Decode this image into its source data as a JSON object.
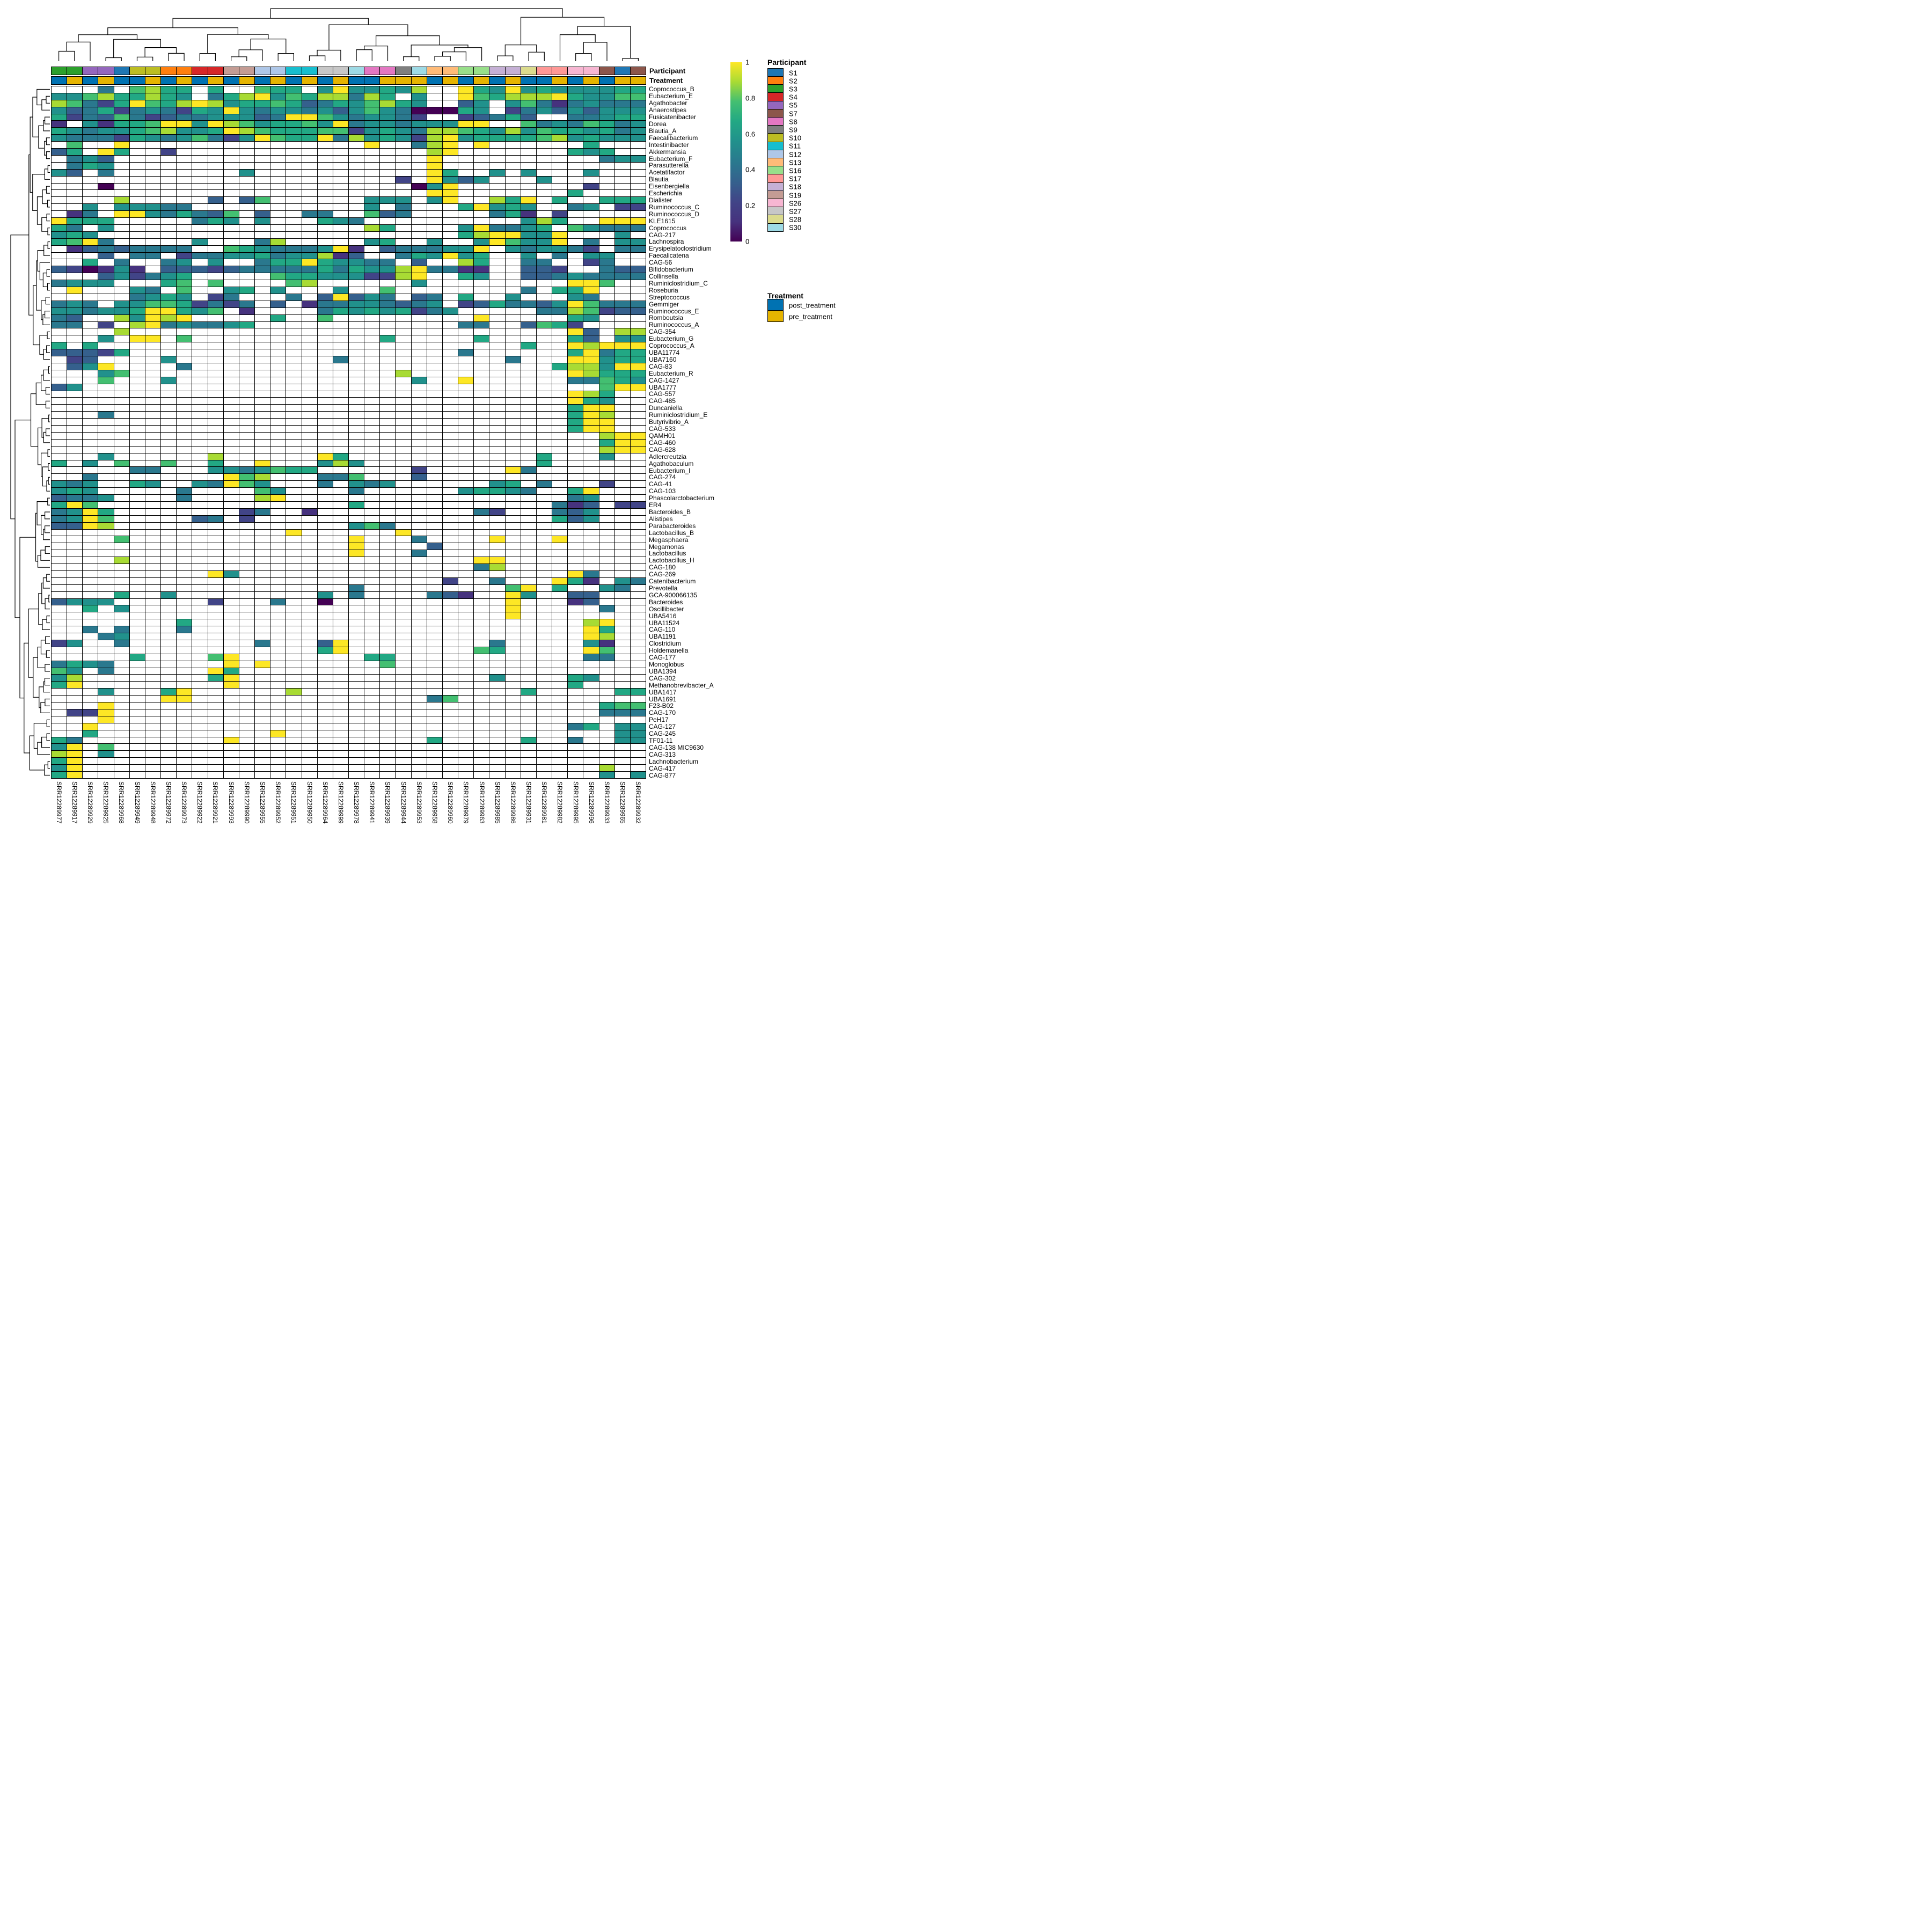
{
  "annotation_labels": {
    "participant": "Participant",
    "treatment": "Treatment"
  },
  "legend": {
    "scale": {
      "ticks": [
        "1",
        "0.8",
        "0.6",
        "0.4",
        "0.2",
        "0"
      ]
    },
    "participant": {
      "title": "Participant",
      "entries": [
        {
          "label": "S1",
          "color": "#1f77b4"
        },
        {
          "label": "S2",
          "color": "#ff7f0e"
        },
        {
          "label": "S3",
          "color": "#2ca02c"
        },
        {
          "label": "S4",
          "color": "#d62728"
        },
        {
          "label": "S5",
          "color": "#9467bd"
        },
        {
          "label": "S7",
          "color": "#8c564b"
        },
        {
          "label": "S8",
          "color": "#e377c2"
        },
        {
          "label": "S9",
          "color": "#7f7f7f"
        },
        {
          "label": "S10",
          "color": "#bcbd22"
        },
        {
          "label": "S11",
          "color": "#17becf"
        },
        {
          "label": "S12",
          "color": "#aec7e8"
        },
        {
          "label": "S13",
          "color": "#ffbb78"
        },
        {
          "label": "S16",
          "color": "#98df8a"
        },
        {
          "label": "S17",
          "color": "#ff9896"
        },
        {
          "label": "S18",
          "color": "#c5b0d5"
        },
        {
          "label": "S19",
          "color": "#c49c94"
        },
        {
          "label": "S26",
          "color": "#f7b6d2"
        },
        {
          "label": "S27",
          "color": "#c7c7c7"
        },
        {
          "label": "S28",
          "color": "#dbdb8d"
        },
        {
          "label": "S30",
          "color": "#9edae5"
        }
      ]
    },
    "treatment": {
      "title": "Treatment",
      "entries": [
        {
          "label": "post_treatment",
          "color": "#0072b2"
        },
        {
          "label": "pre_treatment",
          "color": "#e6b400"
        }
      ]
    }
  },
  "palette": {
    "participant": {
      "S1": "#1f77b4",
      "S2": "#ff7f0e",
      "S3": "#2ca02c",
      "S4": "#d62728",
      "S5": "#9467bd",
      "S7": "#8c564b",
      "S8": "#e377c2",
      "S9": "#7f7f7f",
      "S10": "#bcbd22",
      "S11": "#17becf",
      "S12": "#aec7e8",
      "S13": "#ffbb78",
      "S16": "#98df8a",
      "S17": "#ff9896",
      "S18": "#c5b0d5",
      "S19": "#c49c94",
      "S26": "#f7b6d2",
      "S27": "#c7c7c7",
      "S28": "#dbdb8d",
      "S30": "#9edae5"
    },
    "treatment": {
      "post_treatment": "#0072b2",
      "pre_treatment": "#e6b400"
    },
    "viridis10": [
      "#440154",
      "#46327e",
      "#414487",
      "#35608d",
      "#2a788e",
      "#21918c",
      "#22a884",
      "#43bf71",
      "#a8db34",
      "#fde725"
    ],
    "na_color": "#ffffff"
  },
  "chart_data": {
    "type": "heatmap",
    "colormap": "viridis",
    "value_range": [
      0,
      1
    ],
    "colorbar_ticks": [
      1,
      0.8,
      0.6,
      0.4,
      0.2,
      0
    ],
    "clustering": {
      "rows": true,
      "columns": true
    },
    "cell_encoding": "each character is one column; '.' = absent (white cell); digit d = abundance bucket with value approx (d+0.5)/10 on the 0-1 viridis scale",
    "columns": [
      {
        "id": "SRR12289977",
        "participant": "S3",
        "treatment": "post_treatment"
      },
      {
        "id": "SRR12289917",
        "participant": "S3",
        "treatment": "pre_treatment"
      },
      {
        "id": "SRR12289929",
        "participant": "S5",
        "treatment": "post_treatment"
      },
      {
        "id": "SRR12289925",
        "participant": "S5",
        "treatment": "pre_treatment"
      },
      {
        "id": "SRR12289968",
        "participant": "S1",
        "treatment": "post_treatment"
      },
      {
        "id": "SRR12289949",
        "participant": "S10",
        "treatment": "post_treatment"
      },
      {
        "id": "SRR12289948",
        "participant": "S10",
        "treatment": "pre_treatment"
      },
      {
        "id": "SRR12289972",
        "participant": "S2",
        "treatment": "post_treatment"
      },
      {
        "id": "SRR12289973",
        "participant": "S2",
        "treatment": "pre_treatment"
      },
      {
        "id": "SRR12289922",
        "participant": "S4",
        "treatment": "post_treatment"
      },
      {
        "id": "SRR12289921",
        "participant": "S4",
        "treatment": "pre_treatment"
      },
      {
        "id": "SRR12289993",
        "participant": "S19",
        "treatment": "post_treatment"
      },
      {
        "id": "SRR12289990",
        "participant": "S19",
        "treatment": "pre_treatment"
      },
      {
        "id": "SRR12289955",
        "participant": "S12",
        "treatment": "post_treatment"
      },
      {
        "id": "SRR12289952",
        "participant": "S12",
        "treatment": "pre_treatment"
      },
      {
        "id": "SRR12289951",
        "participant": "S11",
        "treatment": "post_treatment"
      },
      {
        "id": "SRR12289950",
        "participant": "S11",
        "treatment": "pre_treatment"
      },
      {
        "id": "SRR12289964",
        "participant": "S27",
        "treatment": "post_treatment"
      },
      {
        "id": "SRR12289999",
        "participant": "S27",
        "treatment": "pre_treatment"
      },
      {
        "id": "SRR12289978",
        "participant": "S30",
        "treatment": "post_treatment"
      },
      {
        "id": "SRR12289941",
        "participant": "S8",
        "treatment": "post_treatment"
      },
      {
        "id": "SRR12289939",
        "participant": "S8",
        "treatment": "pre_treatment"
      },
      {
        "id": "SRR12289944",
        "participant": "S9",
        "treatment": "pre_treatment"
      },
      {
        "id": "SRR12289953",
        "participant": "S30",
        "treatment": "pre_treatment"
      },
      {
        "id": "SRR12289958",
        "participant": "S13",
        "treatment": "post_treatment"
      },
      {
        "id": "SRR12289960",
        "participant": "S13",
        "treatment": "pre_treatment"
      },
      {
        "id": "SRR12289979",
        "participant": "S16",
        "treatment": "post_treatment"
      },
      {
        "id": "SRR12289963",
        "participant": "S16",
        "treatment": "pre_treatment"
      },
      {
        "id": "SRR12289985",
        "participant": "S18",
        "treatment": "post_treatment"
      },
      {
        "id": "SRR12289986",
        "participant": "S18",
        "treatment": "pre_treatment"
      },
      {
        "id": "SRR12289931",
        "participant": "S28",
        "treatment": "post_treatment"
      },
      {
        "id": "SRR12289981",
        "participant": "S17",
        "treatment": "post_treatment"
      },
      {
        "id": "SRR12289982",
        "participant": "S17",
        "treatment": "pre_treatment"
      },
      {
        "id": "SRR12289995",
        "participant": "S26",
        "treatment": "post_treatment"
      },
      {
        "id": "SRR12289996",
        "participant": "S26",
        "treatment": "pre_treatment"
      },
      {
        "id": "SRR12289933",
        "participant": "S7",
        "treatment": "post_treatment"
      },
      {
        "id": "SRR12289965",
        "participant": "S1",
        "treatment": "pre_treatment"
      },
      {
        "id": "SRR12289932",
        "participant": "S7",
        "treatment": "pre_treatment"
      }
    ],
    "rows": [
      "Coprococcus_B",
      "Eubacterium_E",
      "Agathobacter",
      "Anaerostipes",
      "Fusicatenibacter",
      "Dorea",
      "Blautia_A",
      "Faecalibacterium",
      "Intestinibacter",
      "Akkermansia",
      "Eubacterium_F",
      "Parasutterella",
      "Acetatifactor",
      "Blautia",
      "Eisenbergiella",
      "Escherichia",
      "Dialister",
      "Ruminococcus_C",
      "Ruminococcus_D",
      "KLE1615",
      "Coprococcus",
      "CAG-217",
      "Lachnospira",
      "Erysipelatoclostridium",
      "Faecalicatena",
      "CAG-56",
      "Bifidobacterium",
      "Collinsella",
      "Ruminiclostridium_C",
      "Roseburia",
      "Streptococcus",
      "Gemmiger",
      "Ruminococcus_E",
      "Romboutsia",
      "Ruminococcus_A",
      "CAG-354",
      "Eubacterium_G",
      "Coprococcus_A",
      "UBA11774",
      "UBA7160",
      "CAG-83",
      "Eubacterium_R",
      "CAG-1427",
      "UBA1777",
      "CAG-557",
      "CAG-485",
      "Duncaniella",
      "Ruminiclostridium_E",
      "Butyrivibrio_A",
      "CAG-533",
      "QAMH01",
      "CAG-460",
      "CAG-628",
      "Adlercreutzia",
      "Agathobaculum",
      "Eubacterium_I",
      "CAG-274",
      "CAG-41",
      "CAG-103",
      "Phascolarctobacterium",
      "ER4",
      "Bacteroides_B",
      "Alistipes",
      "Parabacteroides",
      "Lactobacillus_B",
      "Megasphaera",
      "Megamonas",
      "Lactobacillus",
      "Lactobacillus_H",
      "CAG-180",
      "CAG-269",
      "Catenibacterium",
      "Prevotella",
      "GCA-900066135",
      "Bacteroides",
      "Oscillibacter",
      "UBA5416",
      "UBA11524",
      "CAG-110",
      "UBA1191",
      "Clostridium",
      "Holdemanella",
      "CAG-177",
      "Monoglobus",
      "UBA1394",
      "CAG-302",
      "Methanobrevibacter_A",
      "UBA1417",
      "UBA1691",
      "F23-B02",
      "CAG-170",
      "PeH17",
      "CAG-127",
      "CAG-245",
      "TF01-11",
      "CAG-138 MIC9630",
      "CAG-313",
      "Lachnobacterium",
      "CAG-417",
      "CAG-877"
    ],
    "values": [
      "...4.7866.6..766.5955658..965956555566",
      "557866865.468957688486.5..976888965577",
      "874269768985667634657865..35.574145444",
      "5346245426595455453575400065.245353555",
      "624374234455534997545542..23463..44566",
      "1.51667995987566759455455599..74547645",
      "65455678556987666772565488765857665645",
      "54442654574259766948565289566667856555",
      ".7..9...............9..489.9......6...",
      "36.96..2................89.......656..",
      ".453....................9..........455",
      ".465....................9.............",
      "53.4........5...........96..5.5...5...",
      "......................2.9535...5......",
      "...0...................059........2...",
      "........................99.......6....",
      "....8.....3.37......555.59..869.6..666",
      "..5.55544...........5.4...69565..45.22",
      ".14.99546437.3..44..734.....461.2.....",
      "9666.....465.5...654..........586..999",
      "64.5................86....594456.75444",
      "565.......................6899559...5.",
      "6794.....5...48.....56..5..597559.4.55",
      ".13434444..765444591.3444559.545542.44",
      "...3.44.244556455813..465956..5.4.55..",
      "..6.4..45.5..466965544.3..86..44..24..",
      "320151.333234444464655894411..332..433",
      "...352456.....7665552289..65..33454444",
      "4555...67.7....78......5.........997..",
      ".9...54.7..56.5...5..7........4.669...",
      ".....4565.24...4.39354.34.6..5...54...",
      "454.557762424.3.144554345.236443597444",
      "55455699657.1....465656245.....4487233",
      "43..85989.....6..7.........9.....65...",
      "44.2.89454456.............44..3762....",
      "....8............................93.88",
      "...5.99.7............6.....6.....63.55",
      "6.6...........................6..98999",
      "33326.....................4......69466",
      ".23....5..........4..........4...99566",
      ".359....4.......................688599",
      "...57.................8..........98666",
      "...7...5...............5..9......44765",
      "35.................................799",
      ".................................986..",
      ".................................965..",
      ".................................699..",
      "...4.............................698..",
      ".................................699..",
      ".................................699..",
      "...................................899",
      "...................................699",
      "...................................899",
      "...5......8......96............6...5..",
      "6.5.7..7..6..9...585...........6......",
      ".....44...5545766......2.....94.......",
      "..4........978...447...3..............",
      "545..65..54975...4.545......56.4...2..",
      "565.....4....75....4......56654..69...",
      "3445....4....89..................45...",
      "697................6............413.22",
      "4596........24..1..........42...435...",
      "4597.....34.2...................635...",
      "3398...............574................",
      "...............9......9...............",
      "....7..............9...4....9...9.....",
      "...................9....3.............",
      "...................9...4..............",
      "....8......................99.........",
      "...........................48.........",
      "..........95.....................94...",
      ".........................2..4...961.54",
      "...................4.........79.6..54.",
      "....6..5.........5.4....431..95..33...",
      "3555......2...4..0...........9...13...",
      "..6.5........................9.....4..",
      ".............................9........",
      "........6.........................89..",
      "..4.4...4.........................96..",
      "...45.............................98..",
      "25..4........4...39.........4.....51..",
      ".................69........76.....97..",
      ".....6....79........66............44..",
      "4654.......9.9.......7................",
      "75.4......96..........................",
      "58........69................5....65...",
      "69.........9.....................6....",
      "...5...69......8..............6.....66",
      ".......99...............47............",
      "...9...............................677",
      ".229...............................444",
      "...9...................................",
      "..9..............................46.55",
      "..6...........9.....................55",
      "64.........9............6.....6..4..55",
      "59.7..................................66",
      "89.5...................................",
      "69.....................................",
      "59.................................8..",
      "69.................................5.5"
    ]
  }
}
